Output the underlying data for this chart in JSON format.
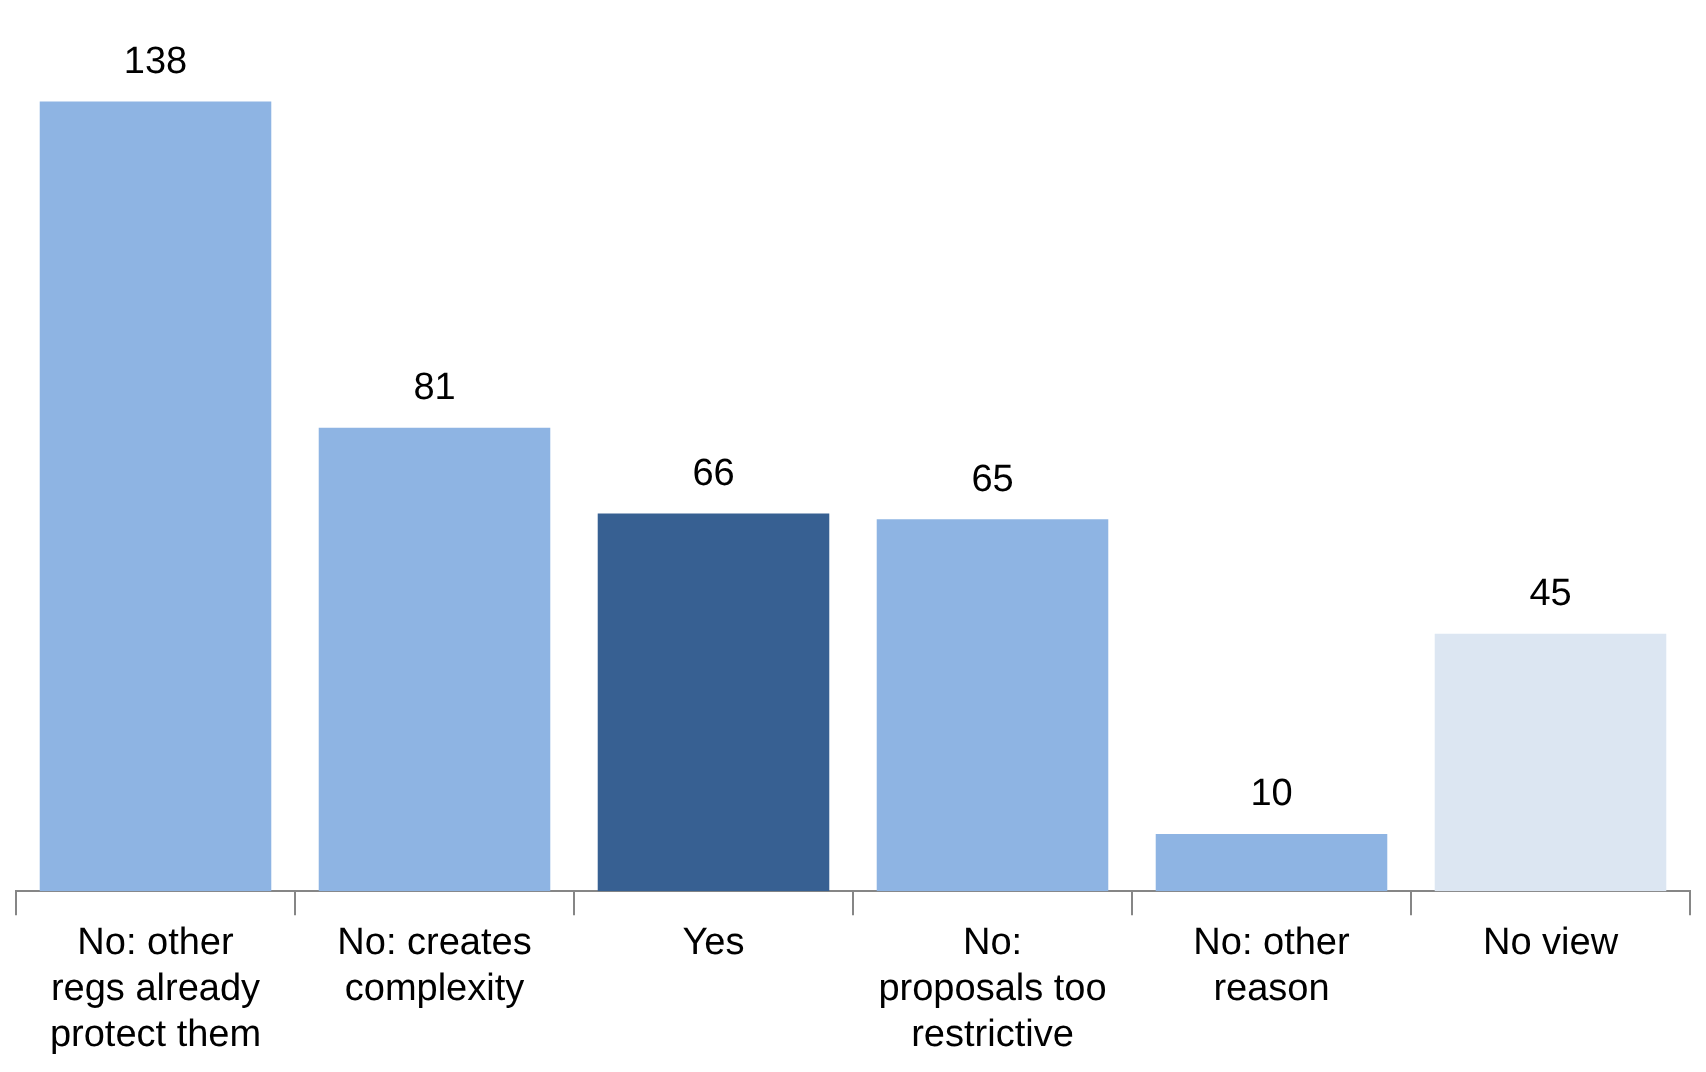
{
  "chart_data": {
    "type": "bar",
    "categories": [
      "No: other regs already protect them",
      "No: creates complexity",
      "Yes",
      "No: proposals too restrictive",
      "No: other reason",
      "No view"
    ],
    "values": [
      138,
      81,
      66,
      65,
      10,
      45
    ],
    "colors": [
      "#8eb4e3",
      "#8eb4e3",
      "#376092",
      "#8eb4e3",
      "#8eb4e3",
      "#dce6f2"
    ],
    "data_labels": true,
    "legend": false,
    "grid": false
  }
}
